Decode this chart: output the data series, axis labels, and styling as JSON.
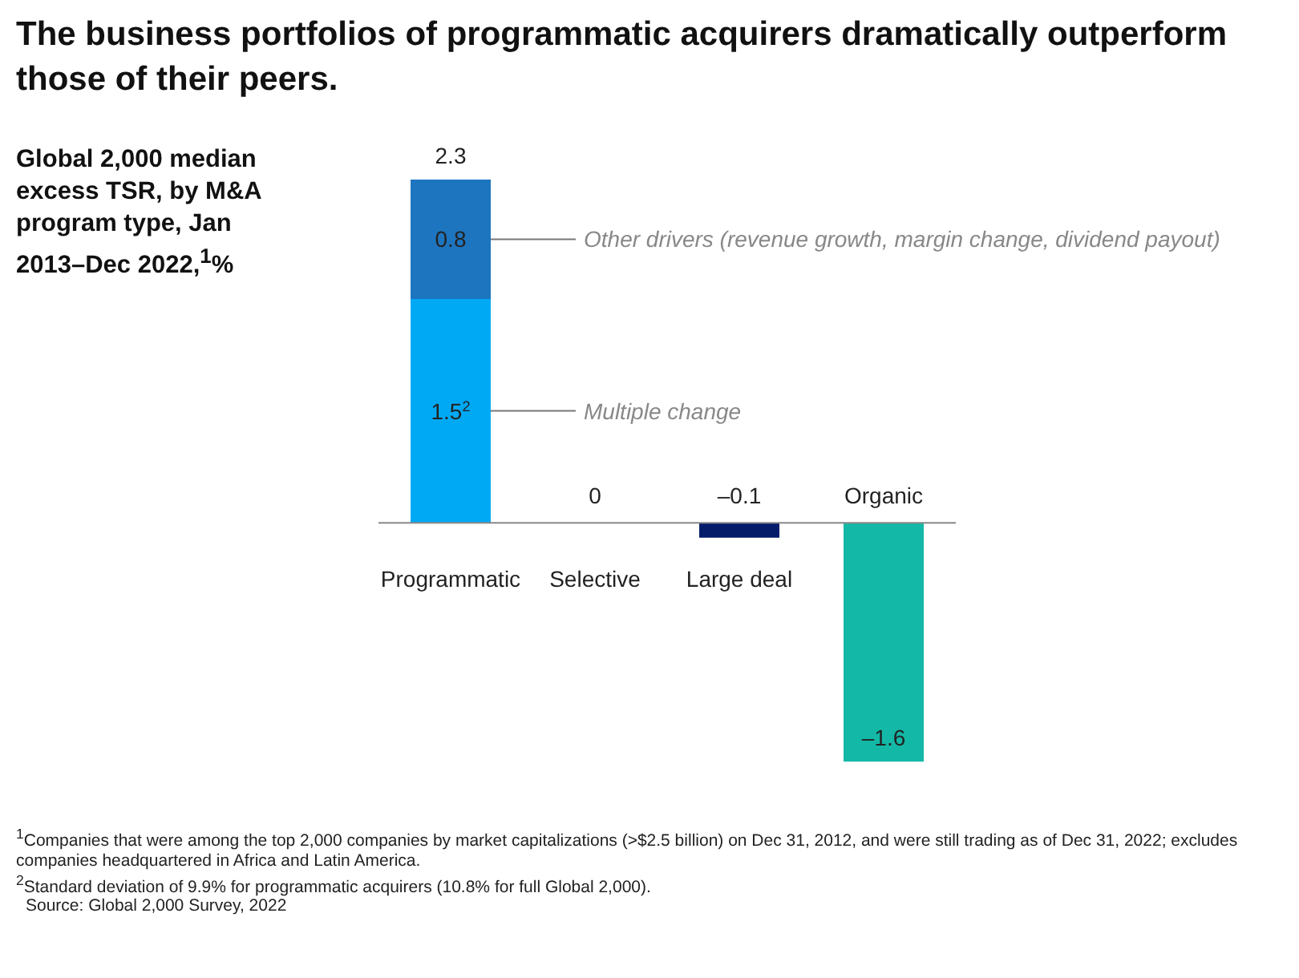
{
  "chart_data": {
    "type": "bar",
    "stacked": true,
    "title": "The business portfolios of programmatic acquirers dramatically outperform those of their peers.",
    "ylabel": "Global 2,000 median excess TSR, by M&A program type, Jan 2013–Dec 2022,$^{1}$%",
    "categories": [
      "Programmatic",
      "Selective",
      "Large deal",
      "Organic"
    ],
    "series": [
      {
        "name": "Multiple change",
        "values": [
          1.5,
          0,
          -0.1,
          -1.6
        ],
        "colors": [
          "#00a9f4",
          "#00a9f4",
          "#051c6b",
          "#13b9a6"
        ],
        "value_labels": [
          "1.5$^{2}$",
          "0",
          "–0.1",
          "–1.6"
        ]
      },
      {
        "name": "Other drivers (revenue growth, margin change, dividend payout)",
        "values": [
          0.8,
          null,
          null,
          null
        ],
        "color": "#1e75bf",
        "value_labels": [
          "0.8",
          null,
          null,
          null
        ]
      }
    ],
    "totals": [
      "2.3",
      null,
      null,
      null
    ],
    "legend": "right",
    "annotations": [
      "$^{1}$Companies that were among the top 2,000 companies by market capitalizations (>$2.5 billion) on Dec 31, 2012, and were still trading as of Dec 31, 2022; excludes companies headquartered in Africa and Latin America.",
      "$^{2}$Standard deviation of 9.9% for programmatic acquirers (10.8% for full Global 2,000).",
      "Source: Global 2,000 Survey, 2022"
    ]
  }
}
